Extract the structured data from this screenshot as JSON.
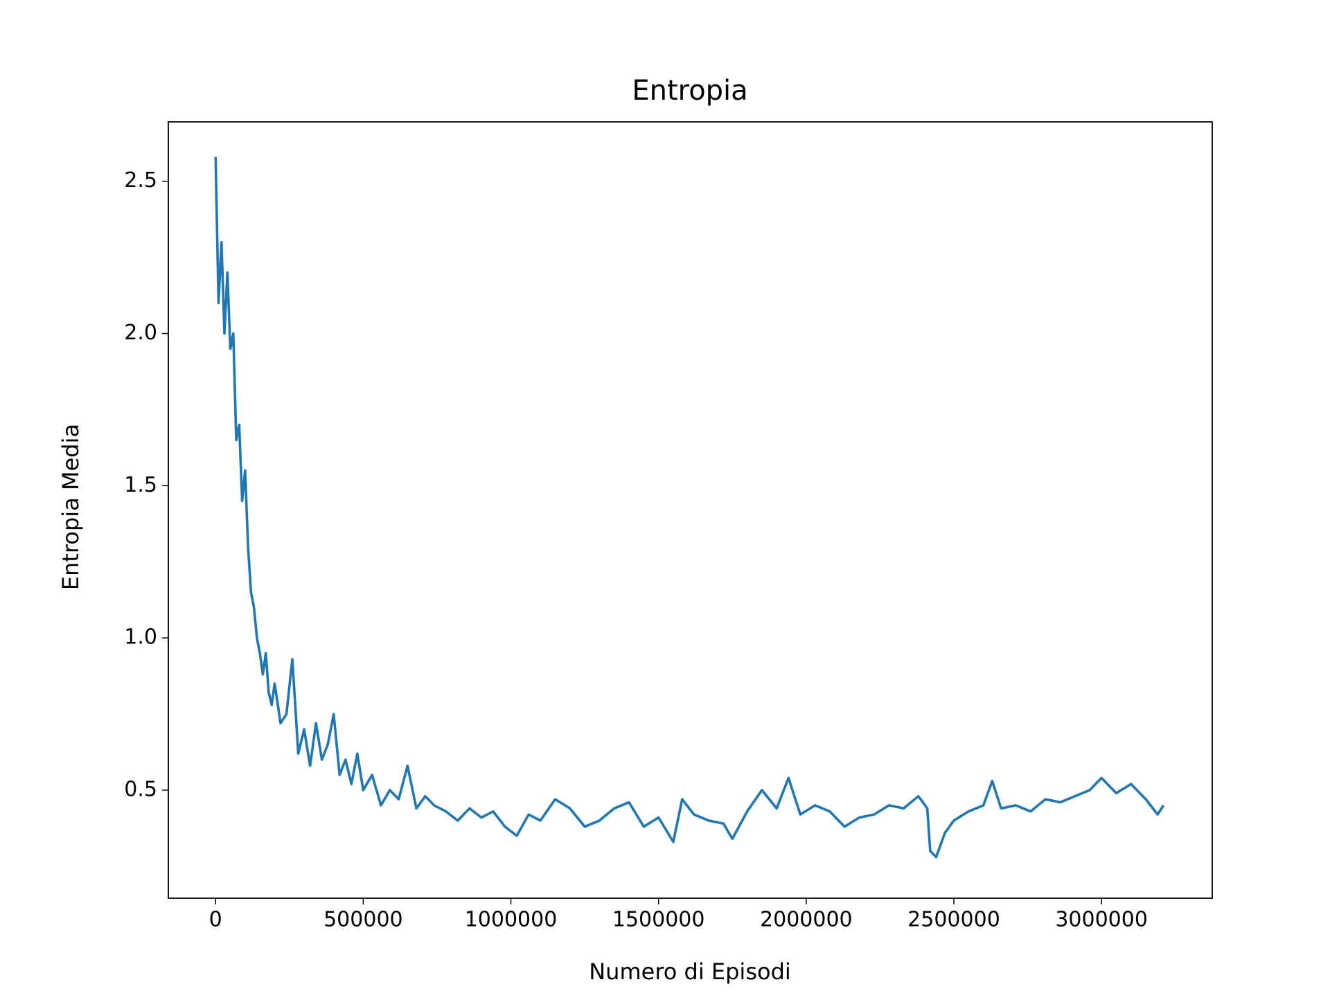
{
  "chart_data": {
    "type": "line",
    "title": "Entropia",
    "x_label": "Numero di Episodi",
    "y_label": "Entropia Media",
    "x": [
      0,
      10000,
      20000,
      30000,
      40000,
      50000,
      60000,
      70000,
      80000,
      90000,
      100000,
      110000,
      120000,
      130000,
      140000,
      150000,
      160000,
      170000,
      180000,
      190000,
      200000,
      220000,
      240000,
      260000,
      280000,
      300000,
      320000,
      340000,
      360000,
      380000,
      400000,
      420000,
      440000,
      460000,
      480000,
      500000,
      530000,
      560000,
      590000,
      620000,
      650000,
      680000,
      710000,
      740000,
      780000,
      820000,
      860000,
      900000,
      940000,
      980000,
      1020000,
      1060000,
      1100000,
      1150000,
      1200000,
      1250000,
      1300000,
      1350000,
      1400000,
      1450000,
      1500000,
      1550000,
      1580000,
      1620000,
      1670000,
      1720000,
      1750000,
      1800000,
      1850000,
      1900000,
      1940000,
      1980000,
      2030000,
      2080000,
      2130000,
      2180000,
      2230000,
      2280000,
      2330000,
      2380000,
      2410000,
      2420000,
      2440000,
      2470000,
      2500000,
      2550000,
      2600000,
      2630000,
      2660000,
      2710000,
      2760000,
      2810000,
      2860000,
      2910000,
      2960000,
      3000000,
      3050000,
      3100000,
      3150000,
      3190000,
      3210000
    ],
    "series": [
      {
        "color": "#1f77b4",
        "values": [
          2.58,
          2.1,
          2.3,
          2.0,
          2.2,
          1.95,
          2.0,
          1.65,
          1.7,
          1.45,
          1.55,
          1.3,
          1.15,
          1.1,
          1.0,
          0.95,
          0.88,
          0.95,
          0.82,
          0.78,
          0.85,
          0.72,
          0.75,
          0.93,
          0.62,
          0.7,
          0.58,
          0.72,
          0.6,
          0.65,
          0.75,
          0.55,
          0.6,
          0.52,
          0.62,
          0.5,
          0.55,
          0.45,
          0.5,
          0.47,
          0.58,
          0.44,
          0.48,
          0.45,
          0.43,
          0.4,
          0.44,
          0.41,
          0.43,
          0.38,
          0.35,
          0.42,
          0.4,
          0.47,
          0.44,
          0.38,
          0.4,
          0.44,
          0.46,
          0.38,
          0.41,
          0.33,
          0.47,
          0.42,
          0.4,
          0.39,
          0.34,
          0.43,
          0.5,
          0.44,
          0.54,
          0.42,
          0.45,
          0.43,
          0.38,
          0.41,
          0.42,
          0.45,
          0.44,
          0.48,
          0.44,
          0.3,
          0.28,
          0.36,
          0.4,
          0.43,
          0.45,
          0.53,
          0.44,
          0.45,
          0.43,
          0.47,
          0.46,
          0.48,
          0.5,
          0.54,
          0.49,
          0.52,
          0.47,
          0.42,
          0.45
        ]
      }
    ],
    "xlim": [
      -160000,
      3375000
    ],
    "ylim": [
      0.145,
      2.695
    ],
    "xticks": [
      0,
      500000,
      1000000,
      1500000,
      2000000,
      2500000,
      3000000
    ],
    "yticks": [
      0.5,
      {
        "value": 1.0,
        "label": "1.0"
      },
      1.5,
      {
        "value": 2.0,
        "label": "2.0"
      },
      2.5
    ],
    "grid": false
  }
}
